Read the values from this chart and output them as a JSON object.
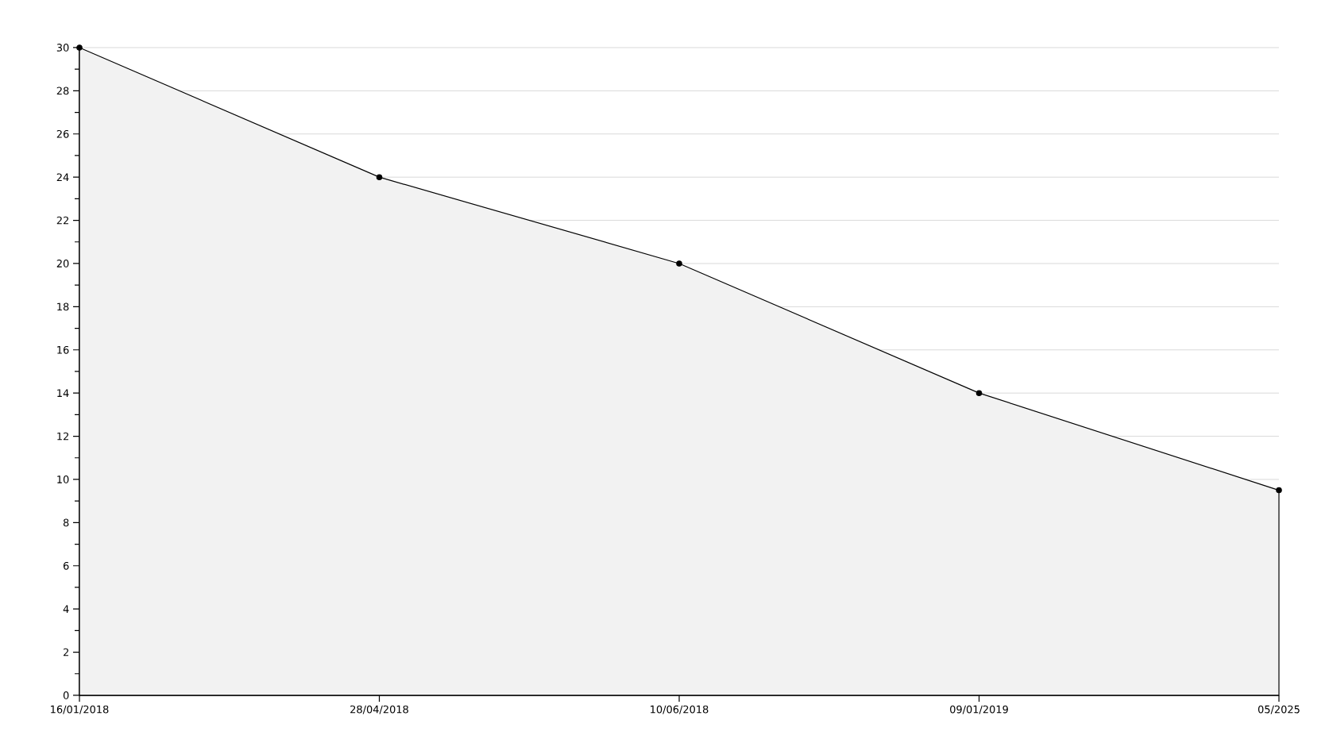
{
  "chart_data": {
    "type": "area",
    "categories": [
      "16/01/2018",
      "28/04/2018",
      "10/06/2018",
      "09/01/2019",
      "05/2025"
    ],
    "values": [
      30,
      24,
      20,
      14,
      9.5
    ],
    "color": "#000000",
    "ylim": [
      0,
      30
    ],
    "yticks": [
      0,
      2,
      4,
      6,
      8,
      10,
      12,
      14,
      16,
      18,
      20,
      22,
      24,
      26,
      28,
      30
    ],
    "grid": "y",
    "marker": "circle",
    "line_style": "solid"
  }
}
